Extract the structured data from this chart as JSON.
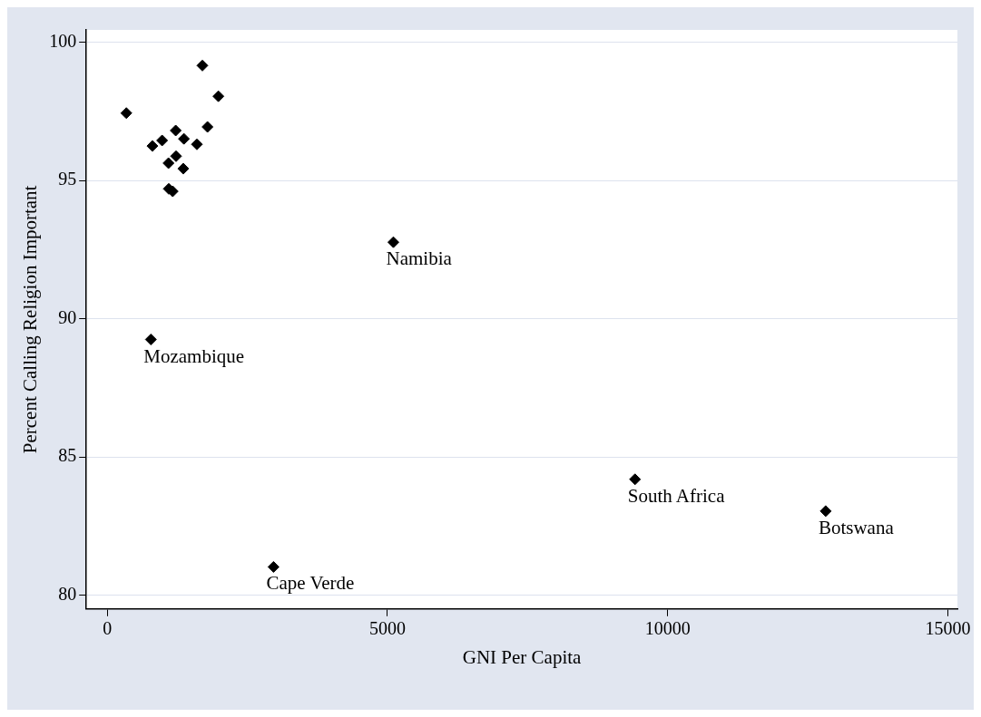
{
  "chart_data": {
    "type": "scatter",
    "xlabel": "GNI Per Capita",
    "ylabel": "Percent Calling Religion Important",
    "x": [
      340,
      1697,
      1982,
      1788,
      1221,
      978,
      805,
      1367,
      1599,
      1227,
      1092,
      1356,
      1097,
      1167,
      5105,
      778,
      9417,
      12820,
      2966
    ],
    "values": [
      97.44,
      99.16,
      98.05,
      96.94,
      96.81,
      96.45,
      96.25,
      96.51,
      96.31,
      95.88,
      95.63,
      95.43,
      94.7,
      94.61,
      92.77,
      89.25,
      84.19,
      83.04,
      81.02
    ],
    "color": "#000000",
    "marker": "diamond",
    "xlim": [
      -373,
      15170
    ],
    "ylim": [
      79.5,
      100.45
    ],
    "xticks": [
      0,
      5000,
      10000,
      15000
    ],
    "yticks": [
      80,
      85,
      90,
      95,
      100
    ],
    "grid": "y",
    "annotations": [
      {
        "text": "Namibia",
        "x": 5105,
        "y": 92.77
      },
      {
        "text": "Mozambique",
        "x": 778,
        "y": 89.25
      },
      {
        "text": "South Africa",
        "x": 9417,
        "y": 84.19
      },
      {
        "text": "Botswana",
        "x": 12820,
        "y": 83.04
      },
      {
        "text": "Cape Verde",
        "x": 2966,
        "y": 81.02
      }
    ]
  }
}
